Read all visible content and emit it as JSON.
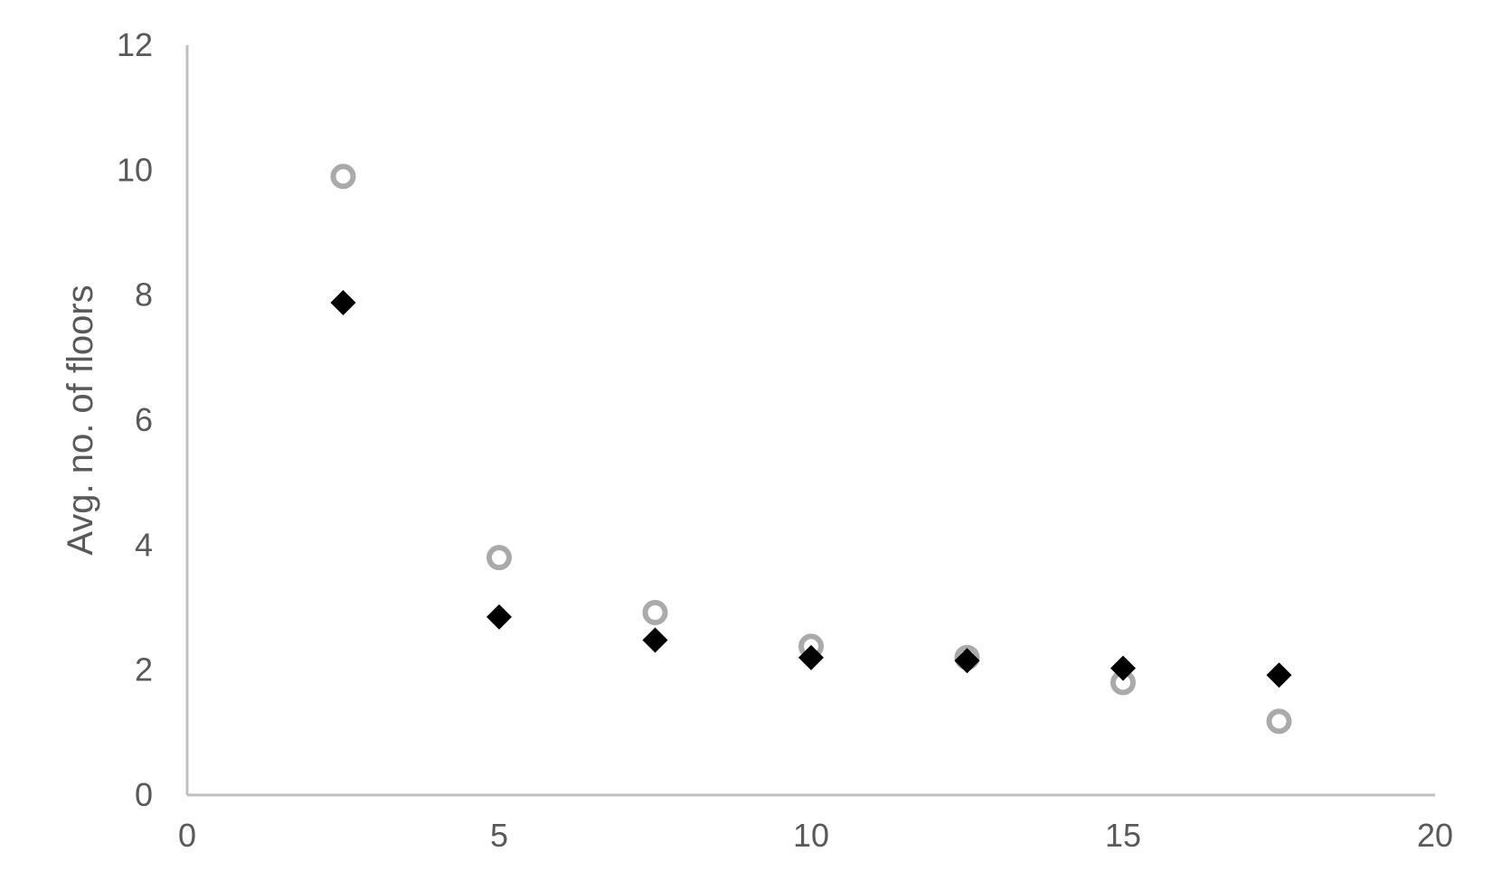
{
  "chart_data": {
    "type": "scatter",
    "title": "",
    "xlabel": "",
    "ylabel": "Avg. no. of floors",
    "xlim": [
      0,
      20
    ],
    "ylim": [
      0,
      12
    ],
    "xticks": [
      0,
      5,
      10,
      15,
      20
    ],
    "yticks": [
      0,
      2,
      4,
      6,
      8,
      10,
      12
    ],
    "grid": false,
    "legend": "none",
    "series": [
      {
        "marker": "circle-open",
        "color": "#aaaaaa",
        "x": [
          2.5,
          5,
          7.5,
          10,
          12.5,
          15,
          17.5
        ],
        "y": [
          9.9,
          3.8,
          2.92,
          2.38,
          2.2,
          1.8,
          1.18
        ]
      },
      {
        "marker": "diamond",
        "color": "#000000",
        "x": [
          2.5,
          5,
          7.5,
          10,
          12.5,
          15,
          17.5
        ],
        "y": [
          7.88,
          2.85,
          2.48,
          2.2,
          2.15,
          2.03,
          1.92
        ]
      }
    ]
  }
}
